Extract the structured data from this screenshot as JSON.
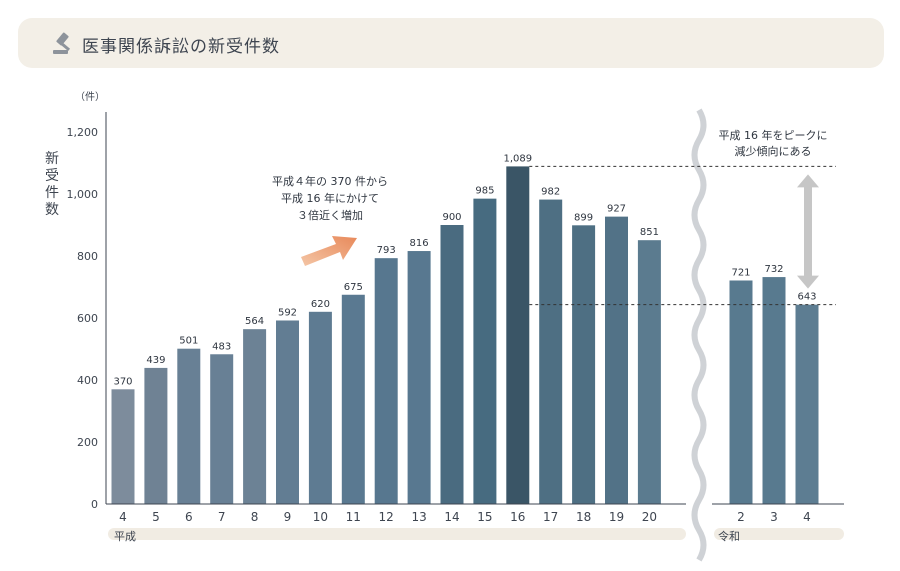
{
  "header": {
    "title": "医事関係訴訟の新受件数",
    "icon": "gavel-icon"
  },
  "chart_data": {
    "type": "bar",
    "title": "医事関係訴訟の新受件数",
    "ylabel": "新受件数",
    "yunit": "（件）",
    "ylim": [
      0,
      1200
    ],
    "yticks": [
      0,
      200,
      400,
      600,
      800,
      1000,
      1200
    ],
    "ytick_labels": [
      "0",
      "200",
      "400",
      "600",
      "800",
      "1,000",
      "1,200"
    ],
    "eras": [
      {
        "name": "平成",
        "categories": [
          "4",
          "5",
          "6",
          "7",
          "8",
          "9",
          "10",
          "11",
          "12",
          "13",
          "14",
          "15",
          "16",
          "17",
          "18",
          "19",
          "20"
        ],
        "values": [
          370,
          439,
          501,
          483,
          564,
          592,
          620,
          675,
          793,
          816,
          900,
          985,
          1089,
          982,
          899,
          927,
          851
        ],
        "labels": [
          "370",
          "439",
          "501",
          "483",
          "564",
          "592",
          "620",
          "675",
          "793",
          "816",
          "900",
          "985",
          "1,089",
          "982",
          "899",
          "927",
          "851"
        ]
      },
      {
        "name": "令和",
        "categories": [
          "2",
          "3",
          "4"
        ],
        "values": [
          721,
          732,
          643
        ],
        "labels": [
          "721",
          "732",
          "643"
        ]
      }
    ],
    "bar_colors": [
      "#7d8c9c",
      "#6f8294",
      "#688095",
      "#688095",
      "#6c8295",
      "#627d93",
      "#5e7b92",
      "#5a7991",
      "#57778f",
      "#587890",
      "#4a6b80",
      "#476b80",
      "#3a5566",
      "#4e6f83",
      "#4e6f83",
      "#527287",
      "#5b7b8f",
      "#587a8f",
      "#587a8f",
      "#5d7d92"
    ],
    "annotations": {
      "increase": [
        "平成４年の 370 件から",
        "平成 16 年にかけて",
        "３倍近く増加"
      ],
      "decrease": [
        "平成 16 年をピークに",
        "減少傾向にある"
      ]
    },
    "colors": {
      "arrow_up": "#e8895a",
      "arrow_down": "#c6c6c6",
      "axis": "#3e4550"
    }
  }
}
